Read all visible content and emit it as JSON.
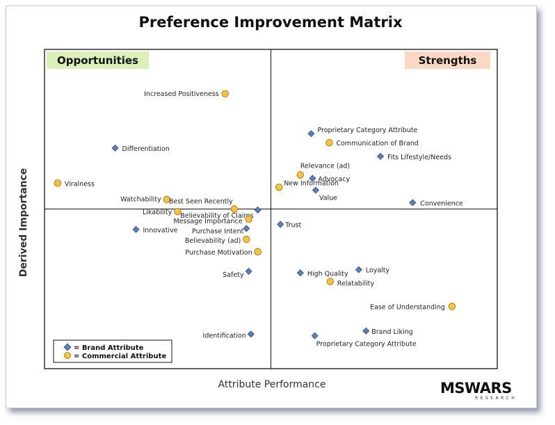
{
  "colors": {
    "brand_marker": "#5b7fbf",
    "brand_marker_edge": "#2f4f80",
    "commercial_marker": "#f5c242",
    "commercial_marker_edge": "#a07000",
    "opportunities_bg": "#dcefb8",
    "strengths_bg": "#fad8c4"
  },
  "logo": {
    "main": "MSWARS",
    "sub": "RESEARCH"
  },
  "chart_data": {
    "type": "scatter",
    "title": "Preference Improvement Matrix",
    "xlabel": "Attribute Performance",
    "ylabel": "Derived Importance",
    "xlim": [
      0,
      100
    ],
    "ylim": [
      0,
      100
    ],
    "grid": false,
    "quadrant_split": {
      "x": 50,
      "y": 50
    },
    "quadrants": {
      "top_left": "Opportunities",
      "top_right": "Strengths"
    },
    "legend": {
      "placement": "bottom-left",
      "entries": [
        {
          "marker": "diamond",
          "label": "= Brand Attribute"
        },
        {
          "marker": "circle",
          "label": "= Commercial  Attribute"
        }
      ]
    },
    "series": [
      {
        "marker": "diamond",
        "points": [
          {
            "label": "Proprietary Category Attribute",
            "x": 58.9,
            "y": 73.6
          },
          {
            "label": "Differentiation",
            "x": 15.6,
            "y": 69.1
          },
          {
            "label": "Fits Lifestyle/Needs",
            "x": 74.2,
            "y": 66.5
          },
          {
            "label": "Advocacy",
            "x": 59.2,
            "y": 59.6
          },
          {
            "label": "Value",
            "x": 59.9,
            "y": 55.9
          },
          {
            "label": "Convenience",
            "x": 81.3,
            "y": 52.0
          },
          {
            "label": "Believability of Claims",
            "x": 47.1,
            "y": 49.7
          },
          {
            "label": "Trust",
            "x": 52.1,
            "y": 45.2
          },
          {
            "label": "Innovative",
            "x": 20.2,
            "y": 43.6
          },
          {
            "label": "Purchase Intent",
            "x": 44.6,
            "y": 43.9
          },
          {
            "label": "Safety",
            "x": 45.1,
            "y": 30.5
          },
          {
            "label": "High Quality",
            "x": 56.5,
            "y": 30.0
          },
          {
            "label": "Loyalty",
            "x": 69.4,
            "y": 31.0
          },
          {
            "label": "Brand Liking",
            "x": 71.0,
            "y": 11.8
          },
          {
            "label": "Proprietary Category Attribute",
            "x": 59.7,
            "y": 10.3
          },
          {
            "label": "Identification",
            "x": 45.6,
            "y": 10.8
          }
        ]
      },
      {
        "marker": "circle",
        "points": [
          {
            "label": "Increased Positiveness",
            "x": 39.9,
            "y": 86.1
          },
          {
            "label": "Communication of Brand",
            "x": 62.9,
            "y": 70.8
          },
          {
            "label": "Relevance (ad)",
            "x": 56.5,
            "y": 60.7
          },
          {
            "label": "New Information",
            "x": 51.8,
            "y": 56.8
          },
          {
            "label": "Viralness",
            "x": 2.9,
            "y": 58.1
          },
          {
            "label": "Watchability",
            "x": 27.0,
            "y": 53.0
          },
          {
            "label": "Best Seen Recently",
            "x": 41.9,
            "y": 50.0
          },
          {
            "label": "Likability",
            "x": 29.4,
            "y": 49.2
          },
          {
            "label": "Message Importance",
            "x": 45.1,
            "y": 46.8
          },
          {
            "label": "Believability (ad)",
            "x": 44.6,
            "y": 40.5
          },
          {
            "label": "Purchase Motivation",
            "x": 47.1,
            "y": 36.6
          },
          {
            "label": "Relatability",
            "x": 63.1,
            "y": 27.3
          },
          {
            "label": "Ease of Understanding",
            "x": 90.0,
            "y": 19.5
          }
        ]
      }
    ]
  }
}
